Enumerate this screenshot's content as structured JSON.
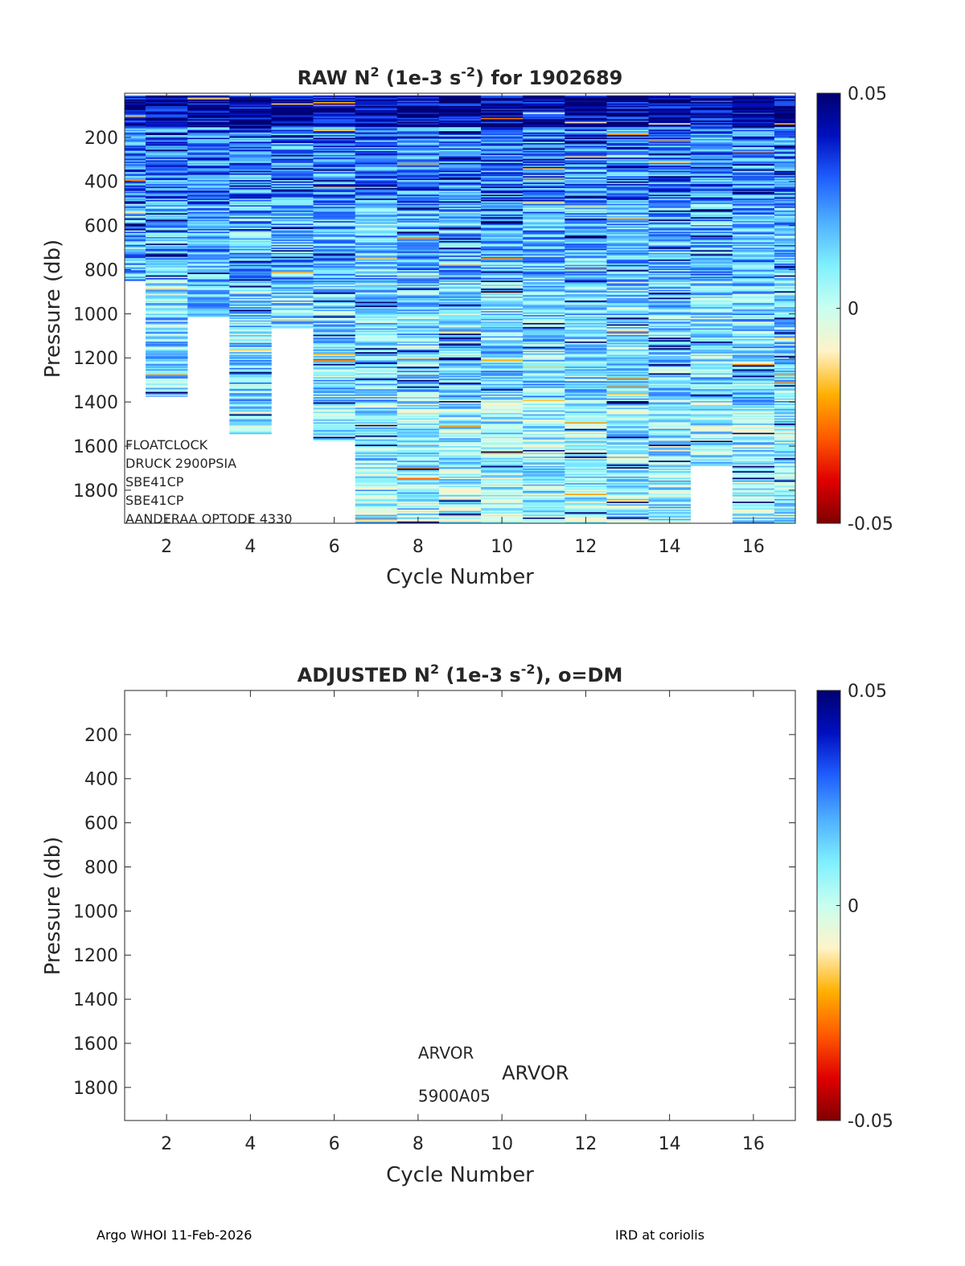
{
  "footer": {
    "left": "Argo WHOI 11-Feb-2026",
    "right": "IRD at coriolis"
  },
  "colormap": [
    "#7f0000",
    "#e00000",
    "#ff5a00",
    "#ffb000",
    "#fff3c8",
    "#c8fff0",
    "#7ff0ff",
    "#4fb0ff",
    "#2060ff",
    "#0010c0",
    "#000070"
  ],
  "chart_data": [
    {
      "type": "heatmap",
      "title_parts": {
        "pre": "RAW N",
        "sup1": "2",
        "mid": " (1e-3 s",
        "sup2": "-2",
        "post": ") for 1902689"
      },
      "xlabel": "Cycle Number",
      "ylabel": "Pressure (db)",
      "xlim": [
        1,
        17
      ],
      "ylim": [
        1950,
        0
      ],
      "xticks": [
        2,
        4,
        6,
        8,
        10,
        12,
        14,
        16
      ],
      "yticks": [
        200,
        400,
        600,
        800,
        1000,
        1200,
        1400,
        1600,
        1800
      ],
      "colorbar": {
        "min": -0.05,
        "max": 0.05,
        "ticks": [
          {
            "value": 0.05,
            "label": "0.05"
          },
          {
            "value": 0,
            "label": "0"
          },
          {
            "value": -0.05,
            "label": "-0.05"
          }
        ]
      },
      "cycles": [
        1,
        2,
        3,
        4,
        5,
        6,
        7,
        8,
        9,
        10,
        11,
        12,
        13,
        14,
        15,
        16,
        17
      ],
      "profile_bottom_db": [
        850,
        1375,
        1015,
        1545,
        1065,
        1575,
        1950,
        1950,
        1950,
        1950,
        1950,
        1950,
        1950,
        1950,
        1690,
        1950,
        1950
      ],
      "profile_top_db": [
        10,
        10,
        10,
        10,
        10,
        10,
        10,
        10,
        10,
        10,
        10,
        10,
        10,
        10,
        10,
        10,
        10
      ],
      "layers": [
        {
          "top": 10,
          "bottom": 150,
          "value": 0.045
        },
        {
          "top": 150,
          "bottom": 500,
          "value": 0.025
        },
        {
          "top": 500,
          "bottom": 850,
          "value": 0.018
        },
        {
          "top": 850,
          "bottom": 1400,
          "value": 0.012
        },
        {
          "top": 1400,
          "bottom": 1950,
          "value": 0.007
        }
      ],
      "annotations": [
        "FLOATCLOCK",
        "DRUCK 2900PSIA",
        "SBE41CP",
        "SBE41CP",
        "AANDERAA OPTODE 4330"
      ]
    },
    {
      "type": "heatmap",
      "title_parts": {
        "pre": "ADJUSTED N",
        "sup1": "2",
        "mid": " (1e-3 s",
        "sup2": "-2",
        "post": "), o=DM"
      },
      "xlabel": "Cycle Number",
      "ylabel": "Pressure (db)",
      "xlim": [
        1,
        17
      ],
      "ylim": [
        1950,
        0
      ],
      "xticks": [
        2,
        4,
        6,
        8,
        10,
        12,
        14,
        16
      ],
      "yticks": [
        200,
        400,
        600,
        800,
        1000,
        1200,
        1400,
        1600,
        1800
      ],
      "colorbar": {
        "min": -0.05,
        "max": 0.05,
        "ticks": [
          {
            "value": 0.05,
            "label": "0.05"
          },
          {
            "value": 0,
            "label": "0"
          },
          {
            "value": -0.05,
            "label": "-0.05"
          }
        ]
      },
      "values": [],
      "annotations": [
        {
          "text": "ARVOR",
          "x": 8,
          "y": 1670,
          "size": "small"
        },
        {
          "text": "ARVOR",
          "x": 10,
          "y": 1765,
          "size": "large"
        },
        {
          "text": "5900A05",
          "x": 8,
          "y": 1865,
          "size": "small"
        }
      ]
    }
  ]
}
